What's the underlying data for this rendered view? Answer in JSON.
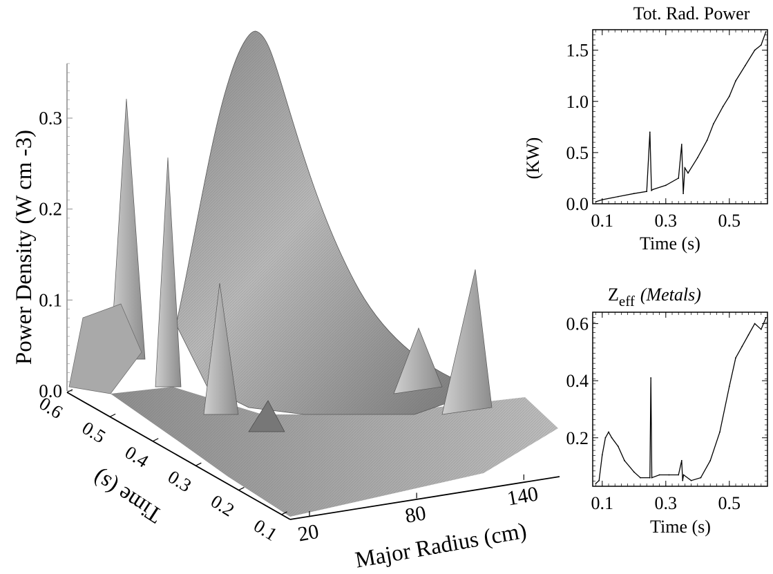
{
  "chart_data": [
    {
      "type": "surface3d",
      "title": "",
      "zlabel": "Power Density (W cm -3)",
      "xlabel": "Major Radius (cm)",
      "ylabel": "Time (s)",
      "z_ticks": [
        "0.0",
        "0.1",
        "0.2",
        "0.3"
      ],
      "x_ticks": [
        "20",
        "80",
        "140"
      ],
      "y_ticks": [
        "0.6",
        "0.5",
        "0.4",
        "0.3",
        "0.2",
        "0.1"
      ],
      "zlim": [
        0,
        0.36
      ],
      "xlim": [
        20,
        160
      ],
      "ylim": [
        0.6,
        0.08
      ],
      "peaks": [
        {
          "radius": 95,
          "time": 0.42,
          "value": 0.35
        },
        {
          "radius": 60,
          "time": 0.52,
          "value": 0.31
        },
        {
          "radius": 70,
          "time": 0.45,
          "value": 0.24
        },
        {
          "radius": 150,
          "time": 0.25,
          "value": 0.12
        },
        {
          "radius": 125,
          "time": 0.3,
          "value": 0.07
        },
        {
          "radius": 85,
          "time": 0.38,
          "value": 0.15
        }
      ]
    },
    {
      "type": "line",
      "title": "Tot. Rad. Power",
      "xlabel": "Time (s)",
      "ylabel": "(KW)",
      "x_ticks": [
        "0.1",
        "0.3",
        "0.5"
      ],
      "y_ticks": [
        "0.0",
        "0.5",
        "1.0",
        "1.5"
      ],
      "xlim": [
        0.07,
        0.62
      ],
      "ylim": [
        0,
        1.7
      ],
      "series": [
        {
          "x": [
            0.08,
            0.1,
            0.15,
            0.2,
            0.24,
            0.25,
            0.255,
            0.26,
            0.3,
            0.34,
            0.35,
            0.355,
            0.36,
            0.37,
            0.4,
            0.43,
            0.45,
            0.48,
            0.5,
            0.52,
            0.55,
            0.58,
            0.6,
            0.615
          ],
          "y": [
            0.02,
            0.04,
            0.07,
            0.1,
            0.12,
            0.7,
            0.13,
            0.14,
            0.18,
            0.25,
            0.58,
            0.1,
            0.35,
            0.3,
            0.45,
            0.62,
            0.78,
            0.95,
            1.05,
            1.2,
            1.35,
            1.5,
            1.55,
            1.68
          ]
        }
      ]
    },
    {
      "type": "line",
      "title": "Zeff (Metals)",
      "title_main": "Z",
      "title_sub": "eff",
      "title_note": "(Metals)",
      "xlabel": "Time (s)",
      "ylabel": "",
      "x_ticks": [
        "0.1",
        "0.3",
        "0.5"
      ],
      "y_ticks": [
        "0.2",
        "0.4",
        "0.6"
      ],
      "xlim": [
        0.07,
        0.62
      ],
      "ylim": [
        0.03,
        0.64
      ],
      "series": [
        {
          "x": [
            0.08,
            0.09,
            0.1,
            0.11,
            0.12,
            0.13,
            0.15,
            0.17,
            0.2,
            0.22,
            0.25,
            0.253,
            0.256,
            0.28,
            0.31,
            0.34,
            0.35,
            0.353,
            0.356,
            0.38,
            0.41,
            0.44,
            0.47,
            0.5,
            0.52,
            0.54,
            0.56,
            0.58,
            0.6,
            0.615
          ],
          "y": [
            0.04,
            0.05,
            0.14,
            0.2,
            0.22,
            0.2,
            0.17,
            0.12,
            0.08,
            0.06,
            0.06,
            0.41,
            0.06,
            0.07,
            0.07,
            0.07,
            0.12,
            0.05,
            0.07,
            0.05,
            0.06,
            0.12,
            0.22,
            0.38,
            0.48,
            0.52,
            0.56,
            0.6,
            0.58,
            0.62
          ]
        }
      ]
    }
  ]
}
